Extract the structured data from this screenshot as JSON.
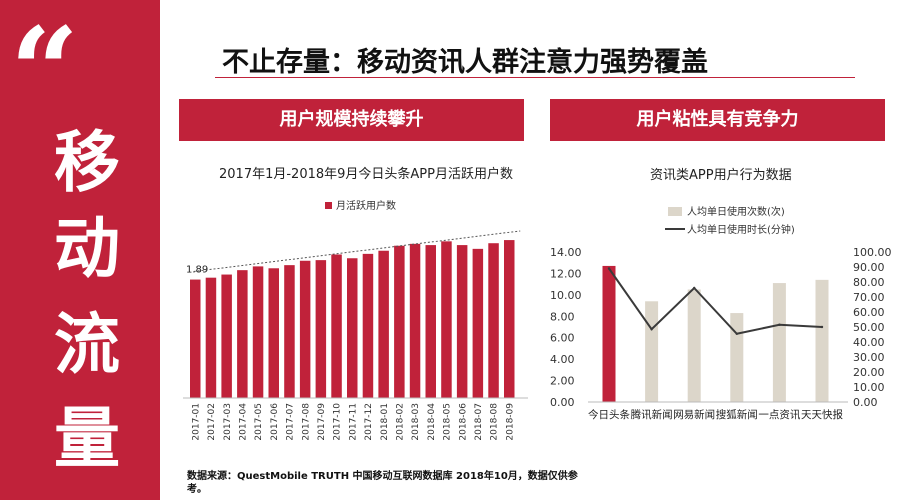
{
  "sidebar": {
    "quote_mark": "“",
    "chars": [
      "移",
      "动",
      "流",
      "量"
    ]
  },
  "title": "不止存量：移动资讯人群注意力强势覆盖",
  "left_panel": {
    "banner": "用户规模持续攀升",
    "chart_title": "2017年1月-2018年9月今日头条APP月活跃用户数"
  },
  "right_panel": {
    "banner": "用户粘性具有竞争力",
    "chart_title": "资讯类APP用户行为数据"
  },
  "footnote": "数据来源：QuestMobile TRUTH 中国移动互联网数据库 2018年10月，数据仅供参考。",
  "colors": {
    "accent": "#c0223a",
    "bar_beige": "#dcd6ca",
    "line_dark": "#3a3a3a"
  },
  "chart_data": [
    {
      "type": "bar",
      "title": "2017年1月-2018年9月今日头条APP月活跃用户数",
      "categories": [
        "2017-01",
        "2017-02",
        "2017-03",
        "2017-04",
        "2017-05",
        "2017-06",
        "2017-07",
        "2017-08",
        "2017-09",
        "2017-10",
        "2017-11",
        "2017-12",
        "2018-01",
        "2018-02",
        "2018-03",
        "2018-04",
        "2018-05",
        "2018-06",
        "2018-07",
        "2018-08",
        "2018-09"
      ],
      "series": [
        {
          "name": "月活跃用户数",
          "values": [
            1.89,
            1.92,
            1.97,
            2.04,
            2.1,
            2.07,
            2.12,
            2.19,
            2.2,
            2.29,
            2.23,
            2.3,
            2.35,
            2.43,
            2.46,
            2.44,
            2.5,
            2.44,
            2.38,
            2.47,
            2.52
          ]
        }
      ],
      "data_labels": [
        {
          "category": "2017-01",
          "text": "1.89"
        }
      ],
      "trendline": true,
      "legend": "top",
      "ylim": [
        0,
        3.0
      ]
    },
    {
      "type": "bar",
      "title": "资讯类APP用户行为数据",
      "categories": [
        "今日头条",
        "腾讯新闻",
        "网易新闻",
        "搜狐新闻",
        "一点资讯",
        "天天快报"
      ],
      "series": [
        {
          "name": "人均单日使用次数(次)",
          "type": "bar",
          "axis": "left",
          "values": [
            12.7,
            9.4,
            10.5,
            8.3,
            11.1,
            11.4
          ]
        },
        {
          "name": "人均单日使用时长(分钟)",
          "type": "line",
          "axis": "right",
          "values": [
            89.0,
            48.5,
            76.0,
            45.5,
            51.5,
            50.0
          ]
        }
      ],
      "highlight_category": "今日头条",
      "y_left": {
        "min": 0,
        "max": 14,
        "ticks": [
          "0.00",
          "2.00",
          "4.00",
          "6.00",
          "8.00",
          "10.00",
          "12.00",
          "14.00"
        ]
      },
      "y_right": {
        "min": 0,
        "max": 100,
        "ticks": [
          "0.00",
          "10.00",
          "20.00",
          "30.00",
          "40.00",
          "50.00",
          "60.00",
          "70.00",
          "80.00",
          "90.00",
          "100.00"
        ]
      },
      "legend": "top"
    }
  ]
}
